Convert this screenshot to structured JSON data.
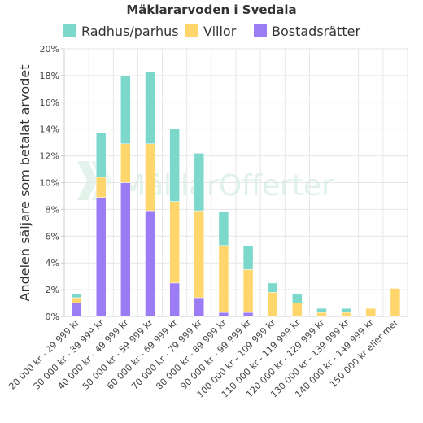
{
  "chart_data": {
    "type": "bar",
    "stacked": true,
    "title": "Mäklararvoden i Svedala",
    "ylabel": "Andelen säljare som betalat arvodet",
    "xlabel": "",
    "ylim": [
      0,
      20
    ],
    "yticks": [
      "0%",
      "2%",
      "4%",
      "6%",
      "8%",
      "10%",
      "12%",
      "14%",
      "16%",
      "18%",
      "20%"
    ],
    "grid": true,
    "legend_position": "top",
    "categories": [
      "20 000 kr - 29 999 kr",
      "30 000 kr - 39 999 kr",
      "40 000 kr - 49 999 kr",
      "50 000 kr - 59 999 kr",
      "60 000 kr - 69 999 kr",
      "70 000 kr - 79 999 kr",
      "80 000 kr - 89 999 kr",
      "90 000 kr - 99 999 kr",
      "100 000 kr - 109 999 kr",
      "110 000 kr - 119 999 kr",
      "120 000 kr - 129 999 kr",
      "130 000 kr - 139 999 kr",
      "140 000 kr - 149 999 kr",
      "150 000 kr eller mer"
    ],
    "series": [
      {
        "name": "Bostadsrätter",
        "color": "#9b7cf4",
        "values": [
          1.0,
          8.9,
          10.0,
          7.9,
          2.5,
          1.4,
          0.3,
          0.3,
          0,
          0,
          0,
          0,
          0,
          0
        ]
      },
      {
        "name": "Villor",
        "color": "#ffd66b",
        "values": [
          0.4,
          1.5,
          2.9,
          5.0,
          6.1,
          6.5,
          5.0,
          3.2,
          1.8,
          1.0,
          0.3,
          0.3,
          0.6,
          2.1
        ]
      },
      {
        "name": "Radhus/parhus",
        "color": "#7dd8cc",
        "values": [
          0.3,
          3.3,
          5.1,
          5.4,
          5.4,
          4.3,
          2.5,
          1.8,
          0.7,
          0.7,
          0.3,
          0.3,
          0,
          0
        ]
      }
    ],
    "legend_order": [
      "Radhus/parhus",
      "Villor",
      "Bostadsrätter"
    ]
  },
  "watermark": {
    "text": "MäklarOfferter"
  }
}
